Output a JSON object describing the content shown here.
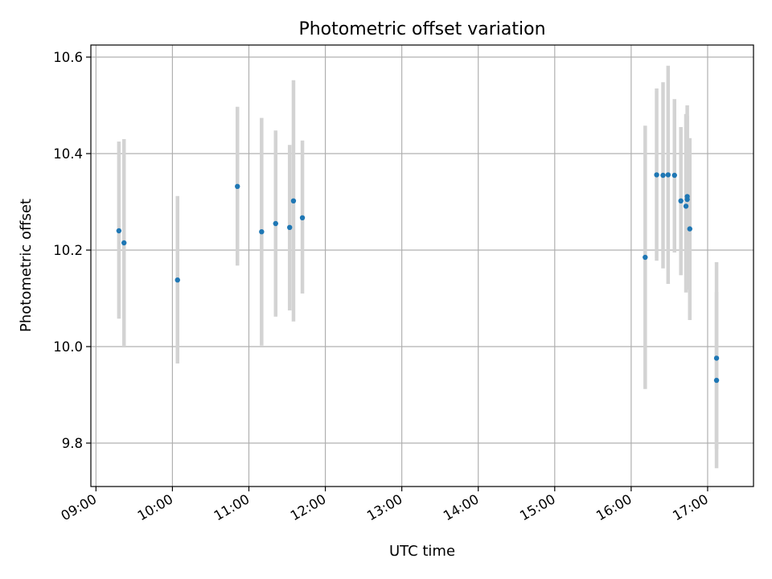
{
  "chart_data": {
    "type": "scatter",
    "title": "Photometric offset variation",
    "xlabel": "UTC time",
    "ylabel": "Photometric offset",
    "xlim": [
      "08:56",
      "17:36"
    ],
    "ylim": [
      9.71,
      10.625
    ],
    "x_ticks": [
      "09:00",
      "10:00",
      "11:00",
      "12:00",
      "13:00",
      "14:00",
      "15:00",
      "16:00",
      "17:00"
    ],
    "y_ticks": [
      "9.8",
      "10.0",
      "10.2",
      "10.4",
      "10.6"
    ],
    "grid": true,
    "colors": {
      "point": "#1f77b4",
      "error_bar": "#d3d3d3",
      "grid": "#b0b0b0"
    },
    "points": [
      {
        "x": "09:18",
        "y": 10.24,
        "ylow": 10.058,
        "yhigh": 10.425
      },
      {
        "x": "09:22",
        "y": 10.215,
        "ylow": 10.0,
        "yhigh": 10.43
      },
      {
        "x": "10:04",
        "y": 10.138,
        "ylow": 9.965,
        "yhigh": 10.312
      },
      {
        "x": "10:51",
        "y": 10.332,
        "ylow": 10.168,
        "yhigh": 10.497
      },
      {
        "x": "11:10",
        "y": 10.238,
        "ylow": 10.002,
        "yhigh": 10.474
      },
      {
        "x": "11:21",
        "y": 10.255,
        "ylow": 10.062,
        "yhigh": 10.448
      },
      {
        "x": "11:32",
        "y": 10.247,
        "ylow": 10.075,
        "yhigh": 10.418
      },
      {
        "x": "11:35",
        "y": 10.302,
        "ylow": 10.052,
        "yhigh": 10.552
      },
      {
        "x": "11:42",
        "y": 10.267,
        "ylow": 10.11,
        "yhigh": 10.427
      },
      {
        "x": "16:11",
        "y": 10.185,
        "ylow": 9.912,
        "yhigh": 10.458
      },
      {
        "x": "16:20",
        "y": 10.356,
        "ylow": 10.178,
        "yhigh": 10.535
      },
      {
        "x": "16:25",
        "y": 10.355,
        "ylow": 10.162,
        "yhigh": 10.548
      },
      {
        "x": "16:29",
        "y": 10.356,
        "ylow": 10.13,
        "yhigh": 10.582
      },
      {
        "x": "16:34",
        "y": 10.355,
        "ylow": 10.195,
        "yhigh": 10.513
      },
      {
        "x": "16:39",
        "y": 10.302,
        "ylow": 10.148,
        "yhigh": 10.455
      },
      {
        "x": "16:43",
        "y": 10.291,
        "ylow": 10.112,
        "yhigh": 10.482
      },
      {
        "x": "16:44",
        "y": 10.311,
        "ylow": 10.118,
        "yhigh": 10.5
      },
      {
        "x": "16:44",
        "y": 10.305,
        "ylow": 10.13,
        "yhigh": 10.478
      },
      {
        "x": "16:46",
        "y": 10.244,
        "ylow": 10.055,
        "yhigh": 10.432
      },
      {
        "x": "17:07",
        "y": 9.976,
        "ylow": 9.788,
        "yhigh": 10.175
      },
      {
        "x": "17:07",
        "y": 9.93,
        "ylow": 9.748,
        "yhigh": 10.113
      }
    ]
  }
}
